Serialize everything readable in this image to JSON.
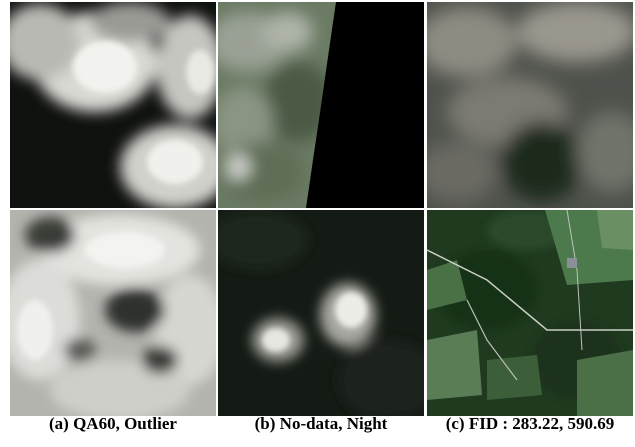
{
  "figure": {
    "captions": [
      "(a) QA60, Outlier",
      "(b) No-data, Night",
      "(c) FID : 283.22, 590.69"
    ],
    "tiles": [
      {
        "column": "a",
        "row": 1,
        "content": "white clouds over dark background"
      },
      {
        "column": "b",
        "row": 1,
        "content": "hazy green land with black no-data region"
      },
      {
        "column": "c",
        "row": 1,
        "content": "grey haze over dark green land"
      },
      {
        "column": "a",
        "row": 2,
        "content": "dense white cloud cover with dark gaps"
      },
      {
        "column": "b",
        "row": 2,
        "content": "small clouds over dark night scene"
      },
      {
        "column": "c",
        "row": 2,
        "content": "green forest with roads and fields"
      }
    ]
  }
}
